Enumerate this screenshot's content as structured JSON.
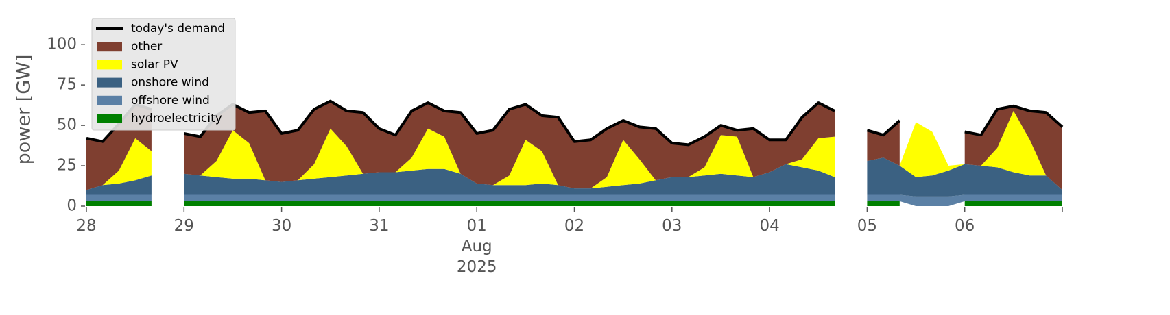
{
  "chart_data": {
    "type": "stacked_area",
    "y_label": "power [GW]",
    "ylim": [
      0,
      120
    ],
    "yticks": [
      0,
      25,
      50,
      75,
      100
    ],
    "grid": false,
    "legend": "upper left",
    "xlim": [
      "2025-07-28T00:00",
      "2025-08-07T00:00"
    ],
    "xticks": [
      {
        "value": "2025-07-28T00:00",
        "label": "28"
      },
      {
        "value": "2025-07-29T00:00",
        "label": "29"
      },
      {
        "value": "2025-07-30T00:00",
        "label": "30"
      },
      {
        "value": "2025-07-31T00:00",
        "label": "31"
      },
      {
        "value": "2025-08-01T00:00",
        "label": "01\nAug\n2025"
      },
      {
        "value": "2025-08-02T00:00",
        "label": "02"
      },
      {
        "value": "2025-08-03T00:00",
        "label": "03"
      },
      {
        "value": "2025-08-04T00:00",
        "label": "04"
      },
      {
        "value": "2025-08-05T00:00",
        "label": "05"
      },
      {
        "value": "2025-08-06T00:00",
        "label": "06"
      }
    ],
    "x": [
      "2025-07-28T00:00",
      "2025-07-28T04:00",
      "2025-07-28T08:00",
      "2025-07-28T12:00",
      "2025-07-28T16:00",
      "2025-07-28T20:00",
      "2025-07-29T00:00",
      "2025-07-29T04:00",
      "2025-07-29T08:00",
      "2025-07-29T12:00",
      "2025-07-29T16:00",
      "2025-07-29T20:00",
      "2025-07-30T00:00",
      "2025-07-30T04:00",
      "2025-07-30T08:00",
      "2025-07-30T12:00",
      "2025-07-30T16:00",
      "2025-07-30T20:00",
      "2025-07-31T00:00",
      "2025-07-31T04:00",
      "2025-07-31T08:00",
      "2025-07-31T12:00",
      "2025-07-31T16:00",
      "2025-07-31T20:00",
      "2025-08-01T00:00",
      "2025-08-01T04:00",
      "2025-08-01T08:00",
      "2025-08-01T12:00",
      "2025-08-01T16:00",
      "2025-08-01T20:00",
      "2025-08-02T00:00",
      "2025-08-02T04:00",
      "2025-08-02T08:00",
      "2025-08-02T12:00",
      "2025-08-02T16:00",
      "2025-08-02T20:00",
      "2025-08-03T00:00",
      "2025-08-03T04:00",
      "2025-08-03T08:00",
      "2025-08-03T12:00",
      "2025-08-03T16:00",
      "2025-08-03T20:00",
      "2025-08-04T00:00",
      "2025-08-04T04:00",
      "2025-08-04T08:00",
      "2025-08-04T12:00",
      "2025-08-04T16:00",
      "2025-08-04T20:00",
      "2025-08-05T00:00",
      "2025-08-05T04:00",
      "2025-08-05T08:00",
      "2025-08-05T12:00",
      "2025-08-05T16:00",
      "2025-08-05T20:00",
      "2025-08-06T00:00",
      "2025-08-06T04:00",
      "2025-08-06T08:00",
      "2025-08-06T12:00",
      "2025-08-06T16:00",
      "2025-08-06T20:00",
      "2025-08-07T00:00"
    ],
    "series": [
      {
        "name": "today's demand",
        "style": "line",
        "color": "#000000",
        "values": [
          42,
          40,
          51,
          63,
          60,
          null,
          45,
          43,
          56,
          63,
          58,
          59,
          45,
          47,
          60,
          65,
          59,
          58,
          48,
          44,
          59,
          64,
          59,
          58,
          45,
          47,
          60,
          63,
          56,
          55,
          40,
          41,
          48,
          53,
          49,
          48,
          39,
          38,
          43,
          50,
          47,
          48,
          41,
          41,
          55,
          64,
          59,
          null,
          47,
          44,
          53,
          null,
          null,
          null,
          46,
          44,
          60,
          62,
          59,
          58,
          49
        ]
      },
      {
        "name": "other",
        "style": "area",
        "color": "#7f3f30",
        "values": [
          32,
          27,
          29,
          21,
          26,
          null,
          25,
          24,
          28,
          16,
          19,
          43,
          30,
          31,
          34,
          17,
          22,
          38,
          27,
          23,
          29,
          16,
          16,
          38,
          31,
          34,
          41,
          22,
          22,
          42,
          29,
          30,
          30,
          12,
          20,
          32,
          21,
          20,
          19,
          6,
          4,
          30,
          20,
          15,
          26,
          22,
          16,
          null,
          19,
          14,
          28,
          null,
          null,
          null,
          20,
          19,
          24,
          3,
          18,
          39,
          39
        ]
      },
      {
        "name": "solar PV",
        "style": "area",
        "color": "#ffff00",
        "values": [
          0,
          0,
          8,
          26,
          15,
          null,
          0,
          0,
          10,
          30,
          22,
          0,
          0,
          0,
          9,
          30,
          18,
          0,
          0,
          0,
          8,
          25,
          20,
          0,
          0,
          0,
          6,
          28,
          20,
          0,
          0,
          0,
          6,
          28,
          15,
          0,
          0,
          0,
          5,
          24,
          24,
          0,
          0,
          0,
          5,
          20,
          25,
          null,
          0,
          0,
          0,
          34,
          27,
          3,
          0,
          0,
          12,
          38,
          22,
          0,
          0
        ]
      },
      {
        "name": "onshore wind",
        "style": "area",
        "color": "#3b6182",
        "values": [
          3,
          6,
          7,
          9,
          12,
          null,
          13,
          12,
          11,
          10,
          10,
          9,
          8,
          9,
          10,
          11,
          12,
          13,
          14,
          14,
          15,
          16,
          16,
          13,
          7,
          6,
          6,
          6,
          7,
          6,
          4,
          4,
          5,
          6,
          7,
          9,
          11,
          11,
          12,
          13,
          12,
          11,
          14,
          19,
          17,
          15,
          11,
          null,
          21,
          23,
          18,
          12,
          13,
          16,
          19,
          18,
          17,
          14,
          12,
          12,
          3
        ]
      },
      {
        "name": "offshore wind",
        "style": "area",
        "color": "#5b80a5",
        "values": [
          4,
          4,
          4,
          4,
          4,
          null,
          4,
          4,
          4,
          4,
          4,
          4,
          4,
          4,
          4,
          4,
          4,
          4,
          4,
          4,
          4,
          4,
          4,
          4,
          4,
          4,
          4,
          4,
          4,
          4,
          4,
          4,
          4,
          4,
          4,
          4,
          4,
          4,
          4,
          4,
          4,
          4,
          4,
          4,
          4,
          4,
          4,
          null,
          4,
          4,
          4,
          6,
          6,
          6,
          4,
          4,
          4,
          4,
          4,
          4,
          4
        ]
      },
      {
        "name": "hydroelectricity",
        "style": "area",
        "color": "#008000",
        "values": [
          3,
          3,
          3,
          3,
          3,
          null,
          3,
          3,
          3,
          3,
          3,
          3,
          3,
          3,
          3,
          3,
          3,
          3,
          3,
          3,
          3,
          3,
          3,
          3,
          3,
          3,
          3,
          3,
          3,
          3,
          3,
          3,
          3,
          3,
          3,
          3,
          3,
          3,
          3,
          3,
          3,
          3,
          3,
          3,
          3,
          3,
          3,
          null,
          3,
          3,
          3,
          null,
          null,
          null,
          3,
          3,
          3,
          3,
          3,
          3,
          3
        ]
      }
    ]
  }
}
